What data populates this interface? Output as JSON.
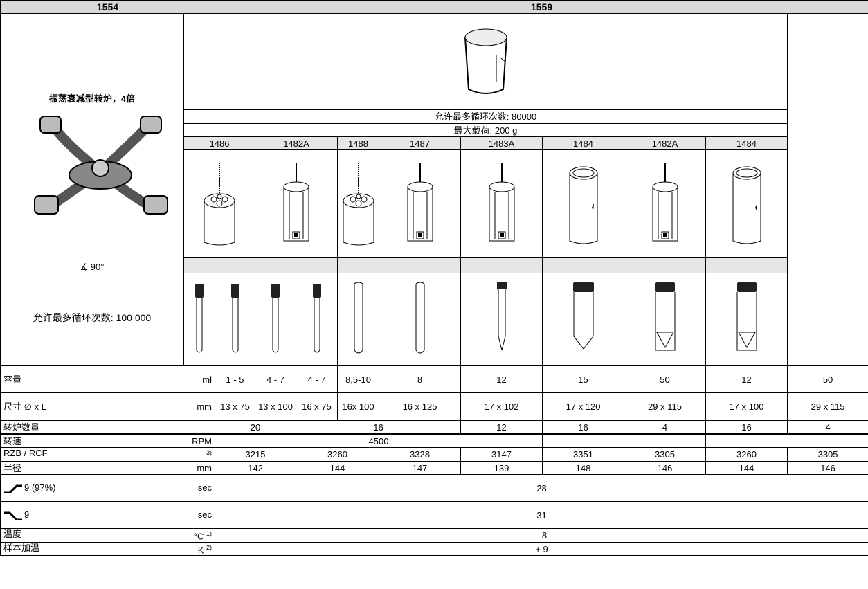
{
  "header": {
    "left": "1554",
    "right": "1559"
  },
  "rotor": {
    "title": "振荡衰减型转炉，4倍",
    "angle": "∡ 90°",
    "cycles": "允许最多循环次数: 100 000"
  },
  "bucket": {
    "cycles": "允许最多循环次数: 80000",
    "max_load": "最大载荷: 200 g"
  },
  "adapters": [
    "1486",
    "1482A",
    "1488",
    "1487",
    "1483A",
    "1484",
    "1482A",
    "1484"
  ],
  "rows": [
    {
      "label": "容量",
      "unit": "ml",
      "cells": [
        "1 - 5",
        "4 - 7",
        "4 - 7",
        "8,5-10",
        "8",
        "12",
        "15",
        "50",
        "12",
        "50"
      ]
    },
    {
      "label": "尺寸 ∅ x L",
      "unit": "mm",
      "cells": [
        "13 x 75",
        "13 x 100",
        "16 x 75",
        "16x 100",
        "16 x 125",
        "17 x 102",
        "17 x 120",
        "29 x 115",
        "17 x 100",
        "29 x 115"
      ]
    },
    {
      "label": "转炉数量",
      "cells": [
        "20",
        "16",
        "12",
        "16",
        "4",
        "16",
        "4"
      ]
    },
    {
      "label": "转速",
      "unit": "RPM",
      "cells": [
        "4500"
      ]
    },
    {
      "label": "RZB / RCF",
      "note": "3)",
      "cells": [
        "3215",
        "3260",
        "3328",
        "3147",
        "3351",
        "3305",
        "3260",
        "3305"
      ]
    },
    {
      "label": "半径",
      "unit": "mm",
      "cells": [
        "142",
        "144",
        "147",
        "139",
        "148",
        "146",
        "144",
        "146"
      ]
    },
    {
      "label": "9 (97%)",
      "unit": "sec",
      "cells": [
        "28"
      ]
    },
    {
      "label": "9",
      "unit": "sec",
      "cells": [
        "31"
      ]
    },
    {
      "label": "温度",
      "unit": "°C",
      "note": "1)",
      "cells": [
        "- 8"
      ]
    },
    {
      "label": "样本加温",
      "unit": "K",
      "note": "2)",
      "cells": [
        "+ 9"
      ]
    }
  ]
}
